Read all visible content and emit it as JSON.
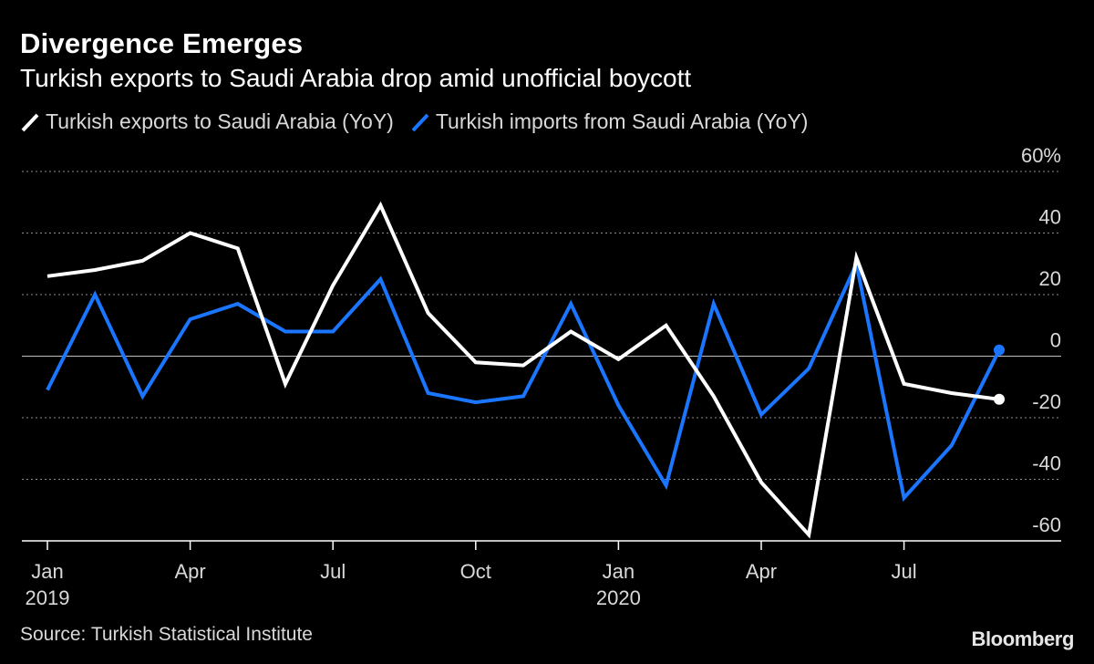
{
  "chart_data": {
    "type": "line",
    "title": "Divergence Emerges",
    "subtitle": "Turkish exports to Saudi Arabia drop amid unofficial boycott",
    "x": [
      "2019-01",
      "2019-02",
      "2019-03",
      "2019-04",
      "2019-05",
      "2019-06",
      "2019-07",
      "2019-08",
      "2019-09",
      "2019-10",
      "2019-11",
      "2019-12",
      "2020-01",
      "2020-02",
      "2020-03",
      "2020-04",
      "2020-05",
      "2020-06",
      "2020-07",
      "2020-08",
      "2020-09"
    ],
    "x_tick_labels": [
      {
        "index": 0,
        "month": "Jan",
        "year": "2019"
      },
      {
        "index": 3,
        "month": "Apr",
        "year": ""
      },
      {
        "index": 6,
        "month": "Jul",
        "year": ""
      },
      {
        "index": 9,
        "month": "Oct",
        "year": ""
      },
      {
        "index": 12,
        "month": "Jan",
        "year": "2020"
      },
      {
        "index": 15,
        "month": "Apr",
        "year": ""
      },
      {
        "index": 18,
        "month": "Jul",
        "year": ""
      }
    ],
    "ylim": [
      -60,
      60
    ],
    "y_ticks": [
      {
        "value": 60,
        "label": "60%"
      },
      {
        "value": 40,
        "label": "40"
      },
      {
        "value": 20,
        "label": "20"
      },
      {
        "value": 0,
        "label": "0"
      },
      {
        "value": -20,
        "label": "-20"
      },
      {
        "value": -40,
        "label": "-40"
      },
      {
        "value": -60,
        "label": "-60"
      }
    ],
    "series": [
      {
        "name": "Turkish exports to Saudi Arabia (YoY)",
        "color": "#ffffff",
        "values": [
          26,
          28,
          31,
          40,
          35,
          -9,
          23,
          49,
          14,
          -2,
          -3,
          8,
          -1,
          10,
          -13,
          -41,
          -58,
          32,
          -9,
          -12,
          -14
        ]
      },
      {
        "name": "Turkish imports from Saudi Arabia (YoY)",
        "color": "#1a75ff",
        "values": [
          -11,
          20,
          -13,
          12,
          17,
          8,
          8,
          25,
          -12,
          -15,
          -13,
          17,
          -16,
          -42,
          17,
          -19,
          -4,
          30,
          -46,
          -29,
          2
        ]
      }
    ]
  },
  "source": "Source: Turkish Statistical Institute",
  "brand": "Bloomberg"
}
